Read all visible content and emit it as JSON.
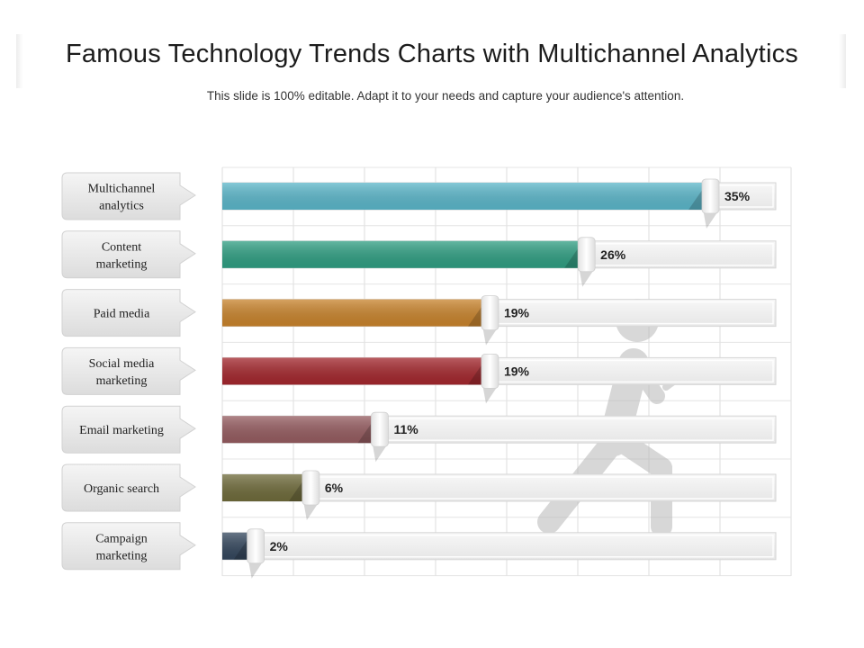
{
  "title": "Famous Technology Trends Charts with Multichannel Analytics",
  "subtitle": "This slide is 100% editable. Adapt it to your needs and capture your audience's attention.",
  "chart_data": {
    "type": "bar",
    "orientation": "horizontal",
    "title": "Famous Technology Trends Charts with Multichannel Analytics",
    "xlim": [
      0,
      35
    ],
    "grid": true,
    "categories": [
      [
        "Multichannel",
        "analytics"
      ],
      [
        "Content",
        "marketing"
      ],
      [
        "Paid media"
      ],
      [
        "Social media",
        "marketing"
      ],
      [
        "Email marketing"
      ],
      [
        "Organic search"
      ],
      [
        "Campaign",
        "marketing"
      ]
    ],
    "values": [
      35,
      26,
      19,
      19,
      11,
      6,
      2
    ],
    "labels": [
      "35%",
      "26%",
      "19%",
      "19%",
      "11%",
      "6%",
      "2%"
    ],
    "colors": [
      "#5bb6c9",
      "#2f9e82",
      "#c8832c",
      "#a3272d",
      "#955c60",
      "#6f6b3b",
      "#34475d"
    ]
  }
}
